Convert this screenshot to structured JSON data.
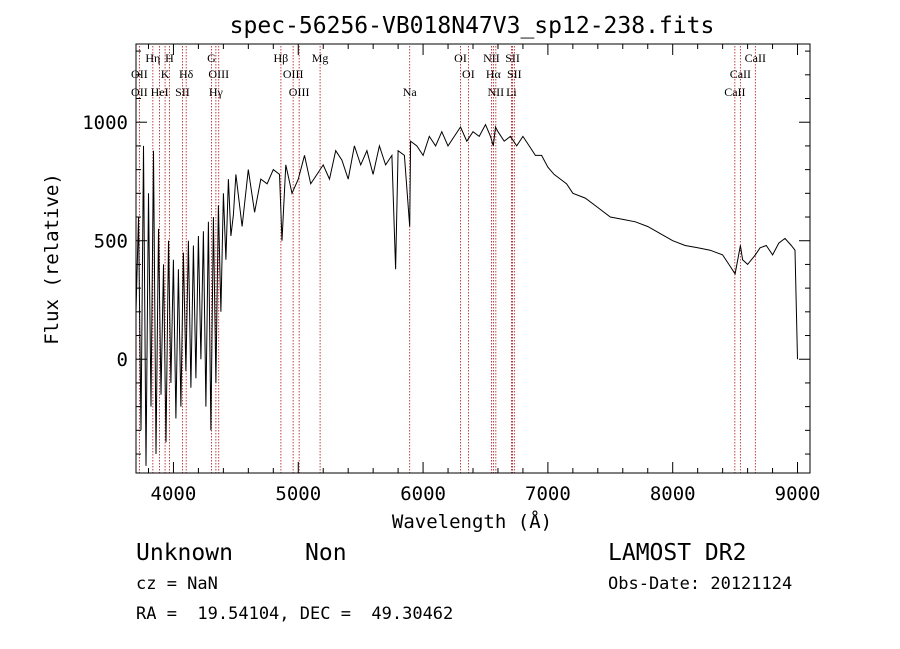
{
  "chart_data": {
    "type": "line",
    "title": "spec-56256-VB018N47V3_sp12-238.fits",
    "xlabel": "Wavelength (Å)",
    "ylabel": "Flux (relative)",
    "xlim": [
      3700,
      9100
    ],
    "ylim": [
      -480,
      1330
    ],
    "x_ticks": [
      4000,
      5000,
      6000,
      7000,
      8000,
      9000
    ],
    "y_ticks": [
      0,
      500,
      1000
    ],
    "grid": false,
    "series": [
      {
        "x": [
          3700,
          3720,
          3740,
          3760,
          3780,
          3800,
          3820,
          3840,
          3860,
          3880,
          3900,
          3920,
          3940,
          3960,
          3980,
          4000,
          4020,
          4040,
          4060,
          4080,
          4100,
          4120,
          4140,
          4160,
          4180,
          4200,
          4220,
          4240,
          4260,
          4280,
          4300,
          4320,
          4340,
          4360,
          4380,
          4400,
          4420,
          4440,
          4460,
          4480,
          4500,
          4550,
          4600,
          4650,
          4700,
          4750,
          4800,
          4850,
          4870,
          4900,
          4950,
          5000,
          5050,
          5100,
          5150,
          5200,
          5250,
          5300,
          5350,
          5400,
          5450,
          5500,
          5550,
          5600,
          5650,
          5700,
          5750,
          5780,
          5800,
          5850,
          5893,
          5900,
          5950,
          6000,
          6050,
          6100,
          6150,
          6200,
          6250,
          6300,
          6350,
          6400,
          6450,
          6500,
          6540,
          6563,
          6580,
          6600,
          6650,
          6700,
          6750,
          6800,
          6850,
          6900,
          6950,
          7000,
          7050,
          7100,
          7150,
          7200,
          7300,
          7400,
          7500,
          7600,
          7700,
          7800,
          7900,
          8000,
          8100,
          8200,
          8300,
          8400,
          8450,
          8500,
          8542,
          8560,
          8600,
          8662,
          8700,
          8750,
          8800,
          8850,
          8900,
          8950,
          8980,
          9000
        ],
        "values": [
          200,
          600,
          -300,
          900,
          -450,
          700,
          -200,
          880,
          -400,
          550,
          -150,
          400,
          -350,
          500,
          -100,
          420,
          -250,
          380,
          -200,
          450,
          -50,
          500,
          -120,
          480,
          -80,
          520,
          0,
          540,
          -200,
          580,
          -300,
          600,
          -100,
          650,
          200,
          700,
          420,
          760,
          520,
          610,
          780,
          560,
          800,
          620,
          760,
          740,
          800,
          780,
          500,
          820,
          700,
          760,
          860,
          740,
          780,
          820,
          760,
          880,
          840,
          760,
          900,
          820,
          880,
          780,
          900,
          820,
          860,
          380,
          880,
          860,
          560,
          920,
          900,
          860,
          940,
          900,
          960,
          900,
          940,
          980,
          920,
          960,
          940,
          990,
          940,
          900,
          980,
          960,
          920,
          940,
          900,
          940,
          900,
          860,
          860,
          810,
          780,
          760,
          740,
          700,
          680,
          640,
          600,
          590,
          580,
          560,
          530,
          500,
          480,
          470,
          460,
          440,
          400,
          360,
          480,
          420,
          400,
          440,
          470,
          480,
          440,
          490,
          510,
          480,
          460,
          0
        ]
      }
    ]
  },
  "lines": [
    {
      "name": "OII",
      "x": 3727,
      "row": 2
    },
    {
      "name": "OII",
      "x": 3727,
      "row": 3
    },
    {
      "name": "Hη",
      "x": 3835,
      "row": 1
    },
    {
      "name": "H",
      "x": 3968,
      "row": 1
    },
    {
      "name": "K",
      "x": 3933,
      "row": 2
    },
    {
      "name": "Hδ",
      "x": 4102,
      "row": 2
    },
    {
      "name": "HeI",
      "x": 3889,
      "row": 3
    },
    {
      "name": "SII",
      "x": 4072,
      "row": 3
    },
    {
      "name": "G",
      "x": 4305,
      "row": 1
    },
    {
      "name": "OIII",
      "x": 4363,
      "row": 2
    },
    {
      "name": "Hγ",
      "x": 4340,
      "row": 3
    },
    {
      "name": "Hβ",
      "x": 4861,
      "row": 1
    },
    {
      "name": "OIII",
      "x": 4959,
      "row": 2
    },
    {
      "name": "OIII",
      "x": 5007,
      "row": 3
    },
    {
      "name": "Mg",
      "x": 5175,
      "row": 1
    },
    {
      "name": "Na",
      "x": 5893,
      "row": 3
    },
    {
      "name": "OI",
      "x": 6300,
      "row": 1
    },
    {
      "name": "OI",
      "x": 6363,
      "row": 2
    },
    {
      "name": "NII",
      "x": 6548,
      "row": 1
    },
    {
      "name": "SII",
      "x": 6717,
      "row": 1
    },
    {
      "name": "Hα",
      "x": 6563,
      "row": 2
    },
    {
      "name": "SII",
      "x": 6731,
      "row": 2
    },
    {
      "name": "NII",
      "x": 6583,
      "row": 3
    },
    {
      "name": "Li",
      "x": 6708,
      "row": 3
    },
    {
      "name": "CaII",
      "x": 8662,
      "row": 1
    },
    {
      "name": "CaII",
      "x": 8542,
      "row": 2
    },
    {
      "name": "CaII",
      "x": 8498,
      "row": 3
    }
  ],
  "info": {
    "class": "Unknown",
    "subclass": "Non",
    "survey": "LAMOST DR2",
    "cz": "cz = NaN",
    "obs_date": "Obs-Date: 20121124",
    "coords": "RA =  19.54104, DEC =  49.30462"
  }
}
